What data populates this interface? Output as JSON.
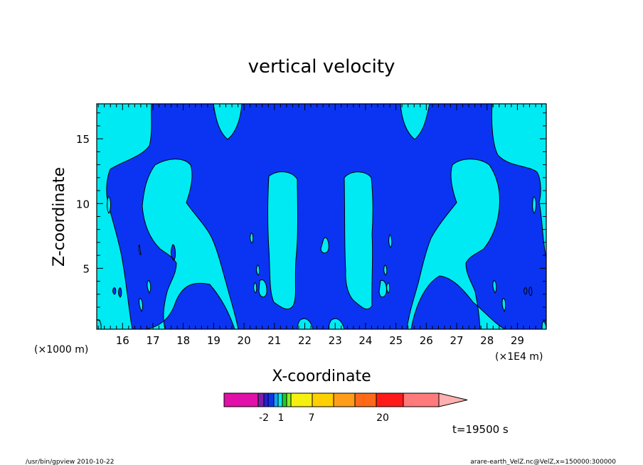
{
  "chart_data": {
    "type": "heatmap",
    "title": "vertical velocity",
    "xlabel": "X-coordinate",
    "ylabel": "Z-coordinate",
    "x_unit_left": "(×1000 m)",
    "x_unit_right": "(×1E4 m)",
    "xlim": [
      15.15,
      29.95
    ],
    "ylim": [
      0.3,
      17.7
    ],
    "x_ticks": [
      "16",
      "17",
      "18",
      "19",
      "20",
      "21",
      "22",
      "23",
      "24",
      "25",
      "26",
      "27",
      "28",
      "29"
    ],
    "y_ticks": [
      "5",
      "10",
      "15"
    ],
    "colors": {
      "cyan": "#00eaf3",
      "blue": "#0a34f2",
      "outline": "#000000"
    },
    "colorbar": {
      "labels": [
        "-2",
        "1",
        "7",
        "20"
      ],
      "colors": [
        "#e010a8",
        "#7a1fa8",
        "#2a1fd0",
        "#0a34f2",
        "#1aa0f0",
        "#00eaf3",
        "#22cc22",
        "#8aee22",
        "#f6f010",
        "#ffd000",
        "#ff9d1a",
        "#ff6a1a",
        "#ff1a1a",
        "#ff7a7a",
        "#ffb0b0"
      ]
    },
    "time_label": "t=19500 s"
  },
  "footer": {
    "left": "/usr/bin/gpview   2010-10-22",
    "right": "arare-earth_VelZ.nc@VelZ,x=150000:300000"
  }
}
